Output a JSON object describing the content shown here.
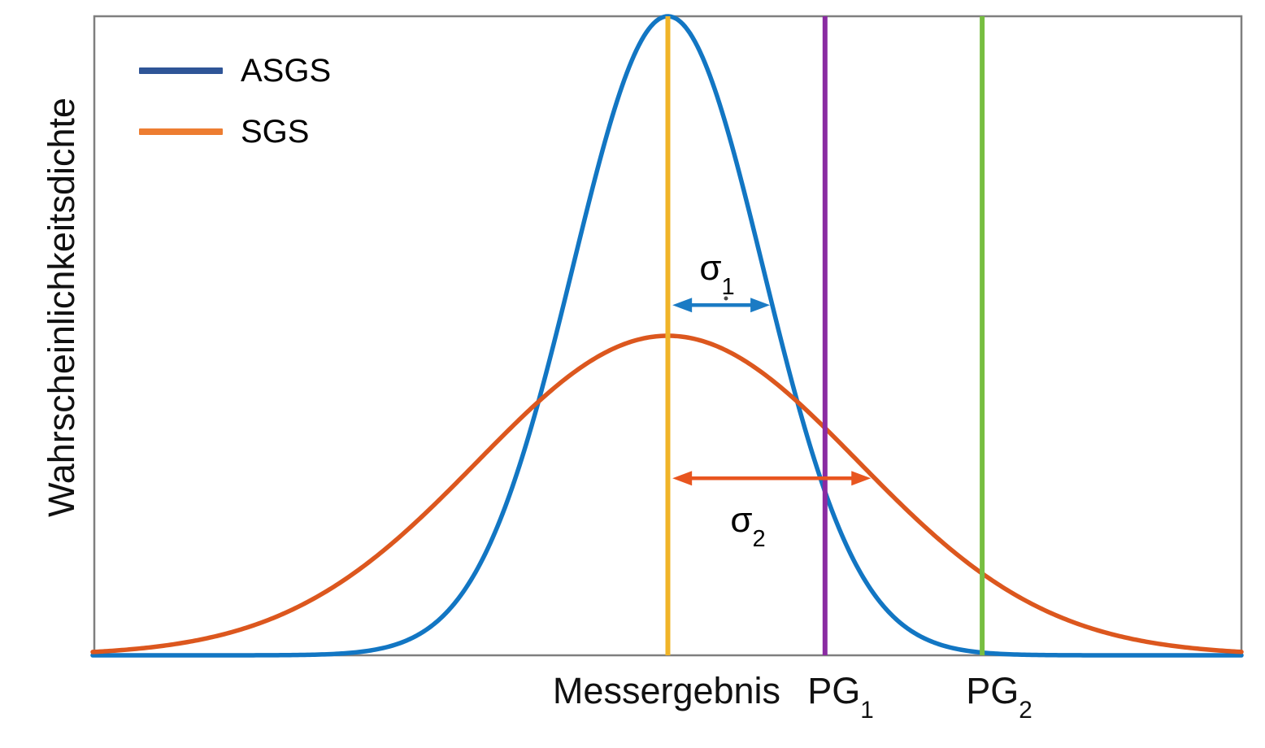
{
  "figure": {
    "ylabel": "Wahrscheinlichkeitsdichte",
    "background": "#ffffff",
    "border_color": "#7f7f7f"
  },
  "legend": {
    "items": [
      {
        "label": "ASGS",
        "color": "#2F5597"
      },
      {
        "label": "SGS",
        "color": "#ED7D31"
      }
    ]
  },
  "chart_data": {
    "type": "line",
    "title": "",
    "xlabel": "",
    "ylabel": "Wahrscheinlichkeitsdichte",
    "x_domain": [
      0,
      1
    ],
    "y_domain": [
      0,
      1
    ],
    "grid": false,
    "numeric_ticks_shown": false,
    "legend_position": "upper-left-inside",
    "series": [
      {
        "name": "ASGS",
        "shape": "gaussian",
        "mean": 0.5,
        "sigma": 0.083,
        "peak": 1.0,
        "color": "#1276C3"
      },
      {
        "name": "SGS",
        "shape": "gaussian",
        "mean": 0.5,
        "sigma": 0.166,
        "peak": 0.5,
        "color": "#DC571E"
      }
    ],
    "vlines": [
      {
        "name": "messergebnis",
        "x": 0.5,
        "color": "#F0B429"
      },
      {
        "name": "pg1",
        "x": 0.637,
        "color": "#8A2BA2"
      },
      {
        "name": "pg2",
        "x": 0.774,
        "color": "#77BE41"
      }
    ],
    "annotations": [
      {
        "name": "sigma1",
        "label_base": "σ",
        "label_sub": "1",
        "x1": 0.504,
        "x2": 0.589,
        "y_frac_from_top": 0.452,
        "color": "#1B7BC4"
      },
      {
        "name": "sigma2",
        "label_base": "σ",
        "label_sub": "2",
        "x1": 0.504,
        "x2": 0.677,
        "y_frac_from_top": 0.723,
        "color": "#E8551F"
      }
    ],
    "xtick_labels": [
      {
        "base": "Messergebnis",
        "sub": ""
      },
      {
        "base": "PG",
        "sub": "1"
      },
      {
        "base": "PG",
        "sub": "2"
      }
    ]
  }
}
